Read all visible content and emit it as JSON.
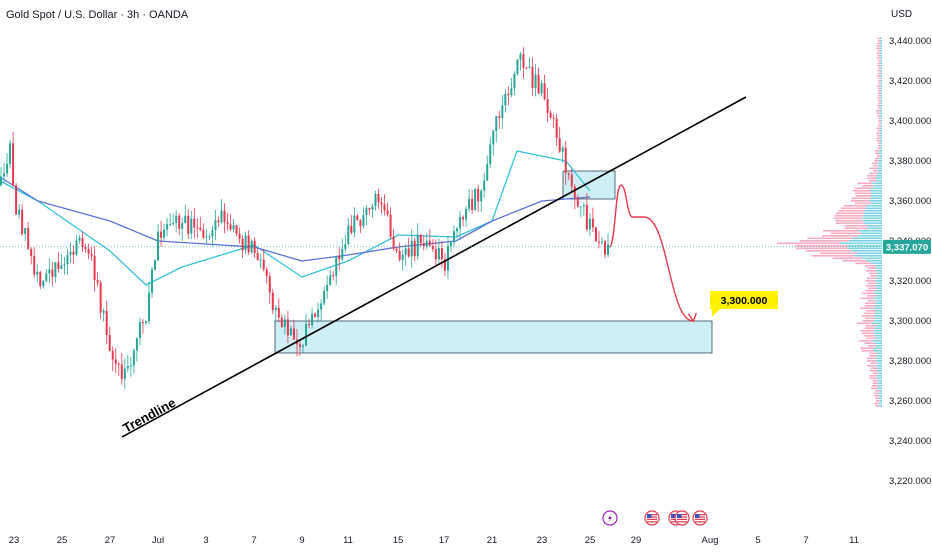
{
  "header": {
    "title": "Gold Spot / U.S. Dollar · 3h · OANDA",
    "currency": "USD"
  },
  "colors": {
    "up": "#26a69a",
    "down": "#e53950",
    "ma_fast": "#34c2d8",
    "ma_slow": "#5b73d6",
    "zone_fill": "#cdeff5",
    "zone_stroke": "#2e4d5a",
    "trendline": "#000000",
    "arrow": "#e53950",
    "last_price_bg": "#26a69a",
    "target_bg": "#fff200",
    "volume_profile_up": "#4ec3d8",
    "volume_profile_down": "#f48fab"
  },
  "chart_data": {
    "type": "candlestick",
    "title": "Gold Spot / U.S. Dollar · 3h · OANDA",
    "y_axis": {
      "unit": "USD",
      "min": 3210,
      "max": 3450,
      "ticks": [
        "3,220.000",
        "3,240.000",
        "3,260.000",
        "3,280.000",
        "3,300.000",
        "3,320.000",
        "3,340.000",
        "3,360.000",
        "3,380.000",
        "3,400.000",
        "3,420.000",
        "3,440.000"
      ]
    },
    "x_axis": {
      "ticks": [
        "23",
        "25",
        "27",
        "Jul",
        "3",
        "7",
        "9",
        "11",
        "15",
        "17",
        "21",
        "23",
        "25",
        "29",
        "Aug",
        "5",
        "7",
        "11"
      ]
    },
    "last_price": {
      "value": 3337.07,
      "label": "3,337.070"
    },
    "target": {
      "value": 3300.0,
      "label": "3,300.000"
    },
    "trendline_label": "Trendline",
    "price_path": [
      {
        "x": "Jun 20",
        "price": 3368
      },
      {
        "x": "Jun 22",
        "price": 3388
      },
      {
        "x": "Jun 23",
        "price": 3360
      },
      {
        "x": "Jun 24",
        "price": 3320
      },
      {
        "x": "Jun 25",
        "price": 3330
      },
      {
        "x": "Jun 26",
        "price": 3340
      },
      {
        "x": "Jun 27",
        "price": 3285
      },
      {
        "x": "Jun 28",
        "price": 3270
      },
      {
        "x": "Jun 30",
        "price": 3305
      },
      {
        "x": "Jul 1",
        "price": 3345
      },
      {
        "x": "Jul 2",
        "price": 3350
      },
      {
        "x": "Jul 3",
        "price": 3340
      },
      {
        "x": "Jul 4",
        "price": 3355
      },
      {
        "x": "Jul 6",
        "price": 3340
      },
      {
        "x": "Jul 7",
        "price": 3335
      },
      {
        "x": "Jul 8",
        "price": 3300
      },
      {
        "x": "Jul 9",
        "price": 3290
      },
      {
        "x": "Jul 10",
        "price": 3318
      },
      {
        "x": "Jul 11",
        "price": 3345
      },
      {
        "x": "Jul 13",
        "price": 3360
      },
      {
        "x": "Jul 14",
        "price": 3350
      },
      {
        "x": "Jul 15",
        "price": 3330
      },
      {
        "x": "Jul 16",
        "price": 3340
      },
      {
        "x": "Jul 17",
        "price": 3330
      },
      {
        "x": "Jul 18",
        "price": 3350
      },
      {
        "x": "Jul 20",
        "price": 3365
      },
      {
        "x": "Jul 21",
        "price": 3395
      },
      {
        "x": "Jul 22",
        "price": 3430
      },
      {
        "x": "Jul 23",
        "price": 3415
      },
      {
        "x": "Jul 24",
        "price": 3375
      },
      {
        "x": "Jul 25",
        "price": 3345
      },
      {
        "x": "Jul 26",
        "price": 3337
      }
    ],
    "moving_averages": [
      {
        "name": "fast",
        "color": "#34c2d8",
        "path": [
          {
            "x": "Jun 20",
            "price": 3370
          },
          {
            "x": "Jun 24",
            "price": 3360
          },
          {
            "x": "Jun 27",
            "price": 3335
          },
          {
            "x": "Jun 30",
            "price": 3318
          },
          {
            "x": "Jul 2",
            "price": 3327
          },
          {
            "x": "Jul 7",
            "price": 3338
          },
          {
            "x": "Jul 9",
            "price": 3322
          },
          {
            "x": "Jul 11",
            "price": 3330
          },
          {
            "x": "Jul 15",
            "price": 3343
          },
          {
            "x": "Jul 18",
            "price": 3342
          },
          {
            "x": "Jul 21",
            "price": 3350
          },
          {
            "x": "Jul 22",
            "price": 3385
          },
          {
            "x": "Jul 24",
            "price": 3380
          },
          {
            "x": "Jul 25",
            "price": 3365
          }
        ]
      },
      {
        "name": "slow",
        "color": "#5b73d6",
        "path": [
          {
            "x": "Jun 20",
            "price": 3372
          },
          {
            "x": "Jun 24",
            "price": 3360
          },
          {
            "x": "Jun 27",
            "price": 3350
          },
          {
            "x": "Jul 1",
            "price": 3340
          },
          {
            "x": "Jul 7",
            "price": 3337
          },
          {
            "x": "Jul 9",
            "price": 3330
          },
          {
            "x": "Jul 11",
            "price": 3333
          },
          {
            "x": "Jul 15",
            "price": 3337
          },
          {
            "x": "Jul 18",
            "price": 3340
          },
          {
            "x": "Jul 21",
            "price": 3350
          },
          {
            "x": "Jul 23",
            "price": 3360
          },
          {
            "x": "Jul 25",
            "price": 3362
          }
        ]
      }
    ],
    "zones": [
      {
        "name": "resistance-zone",
        "from_x": "Jul 24",
        "to_x": "Jul 27",
        "low": 3361,
        "high": 3375
      },
      {
        "name": "support-zone",
        "from_x": "Jul 8",
        "to_x": "Aug 1",
        "low": 3284,
        "high": 3300
      }
    ],
    "trendline": {
      "from": {
        "x": "Jun 28",
        "price": 3242
      },
      "to": {
        "x": "Aug 4",
        "price": 3412
      }
    },
    "projection_path": [
      {
        "x": "Jul 26",
        "price": 3337
      },
      {
        "x": "Jul 27",
        "price": 3368
      },
      {
        "x": "Jul 28",
        "price": 3352
      },
      {
        "x": "Jul 29",
        "price": 3352
      },
      {
        "x": "Jul 31",
        "price": 3300
      }
    ],
    "event_markers": [
      "lightning",
      "us-flag",
      "us-flag",
      "us-flag",
      "us-flag"
    ],
    "grid": false,
    "legend": "none"
  }
}
